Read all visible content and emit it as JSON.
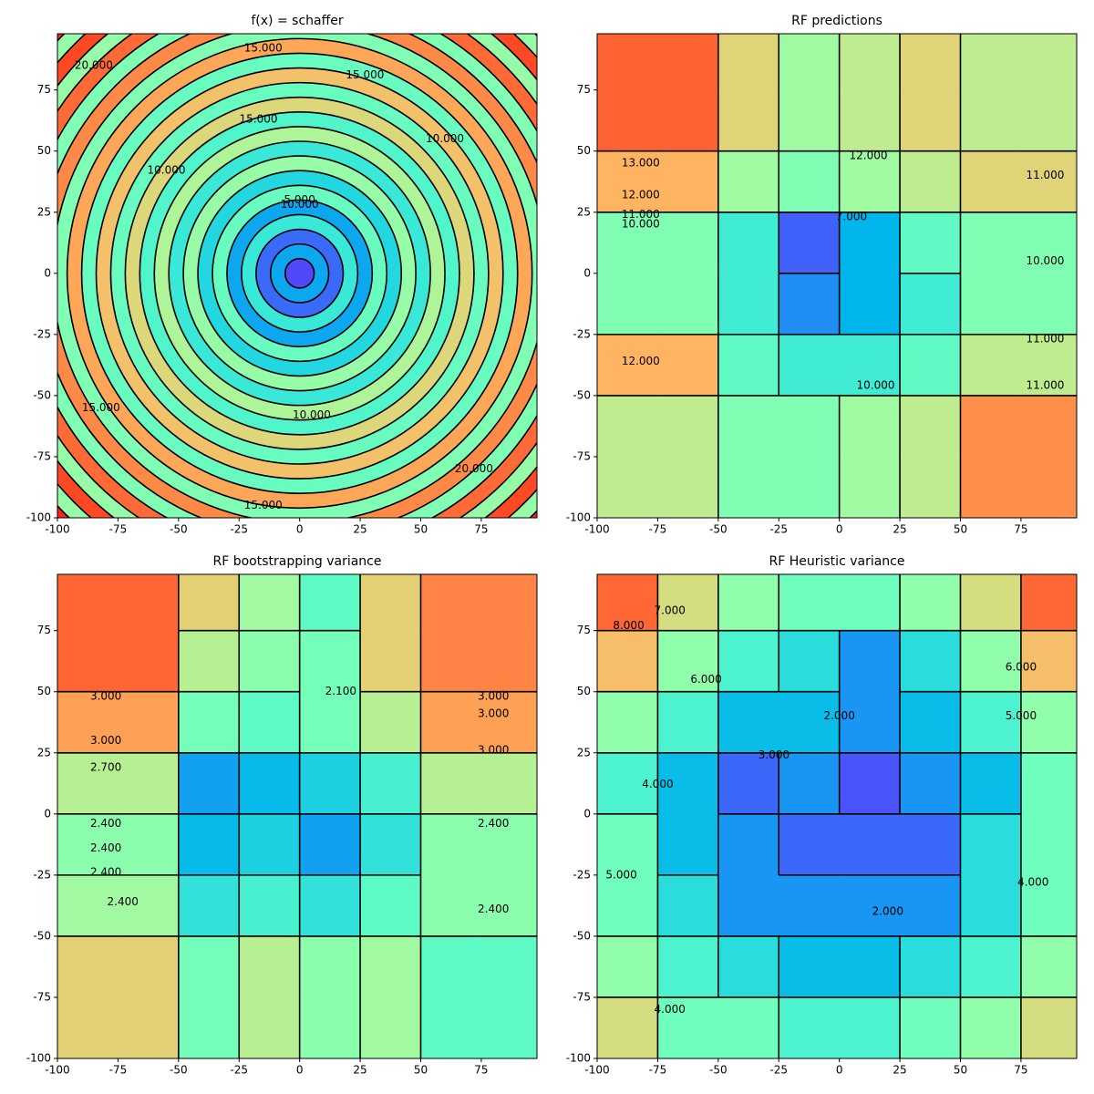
{
  "chart_data": [
    {
      "type": "radial",
      "title": "f(x) = schaffer",
      "xlim": [
        -100,
        98
      ],
      "ylim": [
        -100,
        98
      ],
      "xticks": [
        -100,
        -75,
        -50,
        -25,
        0,
        25,
        50,
        75
      ],
      "yticks": [
        -100,
        -75,
        -50,
        -25,
        0,
        25,
        50,
        75
      ],
      "zlim": [
        0,
        22
      ],
      "r_edges": [
        0,
        6,
        12,
        18,
        24,
        30,
        36,
        42,
        48,
        54,
        60,
        66,
        72,
        78,
        84,
        90,
        96,
        102,
        108,
        114,
        120,
        126,
        132,
        138,
        144
      ],
      "z": [
        2,
        5,
        3,
        8,
        5,
        10,
        7,
        12,
        8,
        13,
        9,
        15,
        10,
        16,
        10,
        17,
        11,
        18,
        11,
        19,
        12,
        20,
        12,
        21
      ],
      "contour_labels": [
        {
          "x": -15,
          "y": 92,
          "label": "15.000"
        },
        {
          "x": 27,
          "y": 81,
          "label": "15.000"
        },
        {
          "x": -17,
          "y": 63,
          "label": "15.000"
        },
        {
          "x": 60,
          "y": 55,
          "label": "10.000"
        },
        {
          "x": -55,
          "y": 42,
          "label": "10.000"
        },
        {
          "x": 0,
          "y": 28,
          "label": "10.000"
        },
        {
          "x": -82,
          "y": -55,
          "label": "15.000"
        },
        {
          "x": 5,
          "y": -58,
          "label": "10.000"
        },
        {
          "x": -15,
          "y": -95,
          "label": "15.000"
        },
        {
          "x": 72,
          "y": -80,
          "label": "20.000"
        },
        {
          "x": -85,
          "y": 85,
          "label": "20.000"
        },
        {
          "x": 0,
          "y": 30,
          "label": "5.000"
        }
      ]
    },
    {
      "type": "grid",
      "title": "RF predictions",
      "xlim": [
        -100,
        98
      ],
      "ylim": [
        -100,
        98
      ],
      "xticks": [
        -100,
        -75,
        -50,
        -25,
        0,
        25,
        50,
        75
      ],
      "yticks": [
        -100,
        -75,
        -50,
        -25,
        0,
        25,
        50,
        75
      ],
      "zlim": [
        6,
        14
      ],
      "edges": [
        -100,
        -75,
        -50,
        -25,
        0,
        25,
        50,
        75,
        100
      ],
      "z": [
        [
          11,
          11,
          10,
          10,
          10.5,
          11,
          12.5,
          12.5
        ],
        [
          11,
          11,
          10,
          10,
          10.5,
          11,
          12.5,
          12.5
        ],
        [
          12,
          12,
          9.5,
          9,
          9,
          9.5,
          11,
          11
        ],
        [
          10,
          10,
          9,
          7.5,
          8,
          9,
          10,
          10
        ],
        [
          10,
          10,
          9,
          7,
          8,
          9.5,
          10,
          10
        ],
        [
          12,
          12,
          10.5,
          10,
          10.5,
          11,
          11.5,
          11.5
        ],
        [
          13,
          13,
          11.5,
          10.5,
          11,
          11.5,
          11,
          11
        ],
        [
          13,
          13,
          11.5,
          10.5,
          11,
          11.5,
          11,
          11
        ]
      ],
      "contour_labels": [
        {
          "x": -82,
          "y": 45,
          "label": "13.000"
        },
        {
          "x": -82,
          "y": 32,
          "label": "12.000"
        },
        {
          "x": -82,
          "y": 24,
          "label": "11.000"
        },
        {
          "x": -82,
          "y": 20,
          "label": "10.000"
        },
        {
          "x": -82,
          "y": -36,
          "label": "12.000"
        },
        {
          "x": 85,
          "y": 40,
          "label": "11.000"
        },
        {
          "x": 85,
          "y": 5,
          "label": "10.000"
        },
        {
          "x": 85,
          "y": -27,
          "label": "11.000"
        },
        {
          "x": 85,
          "y": -46,
          "label": "11.000"
        },
        {
          "x": 5,
          "y": 23,
          "label": "7.000"
        },
        {
          "x": 12,
          "y": 48,
          "label": "12.000"
        },
        {
          "x": 15,
          "y": -46,
          "label": "10.000"
        }
      ]
    },
    {
      "type": "grid",
      "title": "RF bootstrapping variance",
      "xlim": [
        -100,
        98
      ],
      "ylim": [
        -100,
        98
      ],
      "xticks": [
        -100,
        -75,
        -50,
        -25,
        0,
        25,
        50,
        75
      ],
      "yticks": [
        -100,
        -75,
        -50,
        -25,
        0,
        25,
        50,
        75
      ],
      "zlim": [
        1.2,
        3.5
      ],
      "edges": [
        -100,
        -75,
        -50,
        -25,
        0,
        25,
        50,
        75,
        100
      ],
      "z": [
        [
          2.8,
          2.8,
          2.3,
          2.6,
          2.4,
          2.5,
          2.2,
          2.2
        ],
        [
          2.8,
          2.8,
          2.3,
          2.6,
          2.4,
          2.5,
          2.2,
          2.2
        ],
        [
          2.5,
          2.5,
          2.0,
          2.1,
          2.0,
          2.2,
          2.4,
          2.4
        ],
        [
          2.4,
          2.4,
          1.8,
          1.9,
          1.7,
          2.0,
          2.4,
          2.4
        ],
        [
          2.6,
          2.6,
          1.7,
          1.8,
          1.9,
          2.1,
          2.6,
          2.6
        ],
        [
          3.0,
          3.0,
          2.3,
          2.2,
          2.3,
          2.6,
          3.0,
          3.0
        ],
        [
          3.2,
          3.2,
          2.6,
          2.4,
          2.3,
          2.8,
          3.1,
          3.1
        ],
        [
          3.2,
          3.2,
          2.8,
          2.5,
          2.2,
          2.8,
          3.1,
          3.1
        ]
      ],
      "contour_labels": [
        {
          "x": -80,
          "y": 48,
          "label": "3.000"
        },
        {
          "x": -80,
          "y": 30,
          "label": "3.000"
        },
        {
          "x": -80,
          "y": 19,
          "label": "2.700"
        },
        {
          "x": -80,
          "y": -4,
          "label": "2.400"
        },
        {
          "x": -80,
          "y": -14,
          "label": "2.400"
        },
        {
          "x": -80,
          "y": -24,
          "label": "2.400"
        },
        {
          "x": -73,
          "y": -36,
          "label": "2.400"
        },
        {
          "x": 80,
          "y": 48,
          "label": "3.000"
        },
        {
          "x": 80,
          "y": 41,
          "label": "3.000"
        },
        {
          "x": 80,
          "y": 26,
          "label": "3.000"
        },
        {
          "x": 80,
          "y": -4,
          "label": "2.400"
        },
        {
          "x": 80,
          "y": -39,
          "label": "2.400"
        },
        {
          "x": 17,
          "y": 50,
          "label": "2.100"
        }
      ]
    },
    {
      "type": "grid",
      "title": "RF Heuristic variance",
      "xlim": [
        -100,
        98
      ],
      "ylim": [
        -100,
        98
      ],
      "xticks": [
        -100,
        -75,
        -50,
        -25,
        0,
        25,
        50,
        75
      ],
      "yticks": [
        -100,
        -75,
        -50,
        -25,
        0,
        25,
        50,
        75
      ],
      "zlim": [
        1,
        8.5
      ],
      "edges": [
        -100,
        -75,
        -50,
        -25,
        0,
        25,
        50,
        75,
        100
      ],
      "z": [
        [
          6,
          4.5,
          4.5,
          4,
          4,
          4.5,
          5,
          6
        ],
        [
          5,
          4,
          3.5,
          3,
          3,
          3.5,
          4,
          5
        ],
        [
          4.5,
          3.5,
          2.5,
          2.5,
          2.5,
          2.5,
          3.5,
          4.5
        ],
        [
          4.5,
          3,
          2.5,
          2,
          2,
          2,
          3.5,
          4.5
        ],
        [
          4,
          3,
          2,
          2.5,
          1.8,
          2.5,
          3,
          4.5
        ],
        [
          5,
          4,
          3,
          3,
          2.5,
          3,
          4,
          5
        ],
        [
          6.5,
          5,
          4,
          3.5,
          2.5,
          3.5,
          5,
          6.5
        ],
        [
          7.5,
          6,
          5,
          4.5,
          4.5,
          5,
          6,
          7.5
        ]
      ],
      "contour_labels": [
        {
          "x": -70,
          "y": 83,
          "label": "7.000"
        },
        {
          "x": -87,
          "y": 77,
          "label": "8.000"
        },
        {
          "x": -55,
          "y": 55,
          "label": "6.000"
        },
        {
          "x": -27,
          "y": 24,
          "label": "3.000"
        },
        {
          "x": -75,
          "y": 12,
          "label": "4.000"
        },
        {
          "x": -90,
          "y": -25,
          "label": "5.000"
        },
        {
          "x": 0,
          "y": 40,
          "label": "2.000"
        },
        {
          "x": 20,
          "y": -40,
          "label": "2.000"
        },
        {
          "x": 75,
          "y": 60,
          "label": "6.000"
        },
        {
          "x": 75,
          "y": 40,
          "label": "5.000"
        },
        {
          "x": -70,
          "y": -80,
          "label": "4.000"
        },
        {
          "x": 80,
          "y": -28,
          "label": "4.000"
        }
      ]
    }
  ]
}
